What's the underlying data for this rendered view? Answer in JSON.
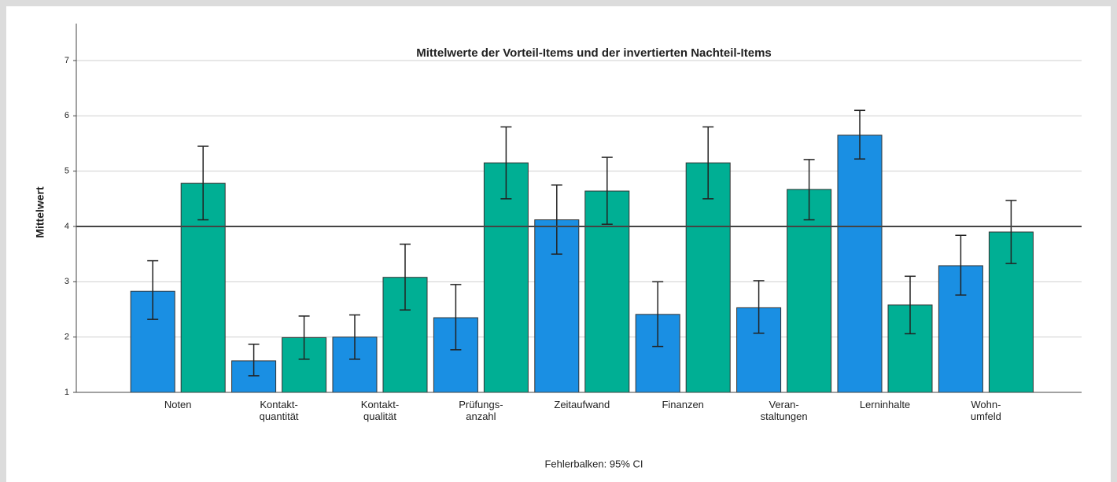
{
  "chart_data": {
    "type": "bar",
    "title": "Mittelwerte der Vorteil-Items und der invertierten Nachteil-Items",
    "y_label": "Mittelwert",
    "annotation": "Fehlerbalken: 95% CI",
    "categories": [
      "Noten",
      "Kontakt-\nquantität",
      "Kontakt-\nqualität",
      "Prüfungs-\nanzahl",
      "Zeitaufwand",
      "Finanzen",
      "Veran-\nstaltungen",
      "Lerninhalte",
      "Wohn-\numfeld"
    ],
    "series": [
      {
        "color": "#1a8fe3",
        "values": [
          2.83,
          1.57,
          2.0,
          2.35,
          4.12,
          2.41,
          2.53,
          5.65,
          3.29
        ],
        "ci_low": [
          2.32,
          1.3,
          1.6,
          1.77,
          3.5,
          1.83,
          2.07,
          5.22,
          2.76
        ],
        "ci_high": [
          3.38,
          1.87,
          2.4,
          2.95,
          4.75,
          3.0,
          3.02,
          6.1,
          3.84
        ]
      },
      {
        "color": "#00af94",
        "values": [
          4.78,
          1.99,
          3.08,
          5.15,
          4.64,
          5.15,
          4.67,
          2.58,
          3.9
        ],
        "ci_low": [
          4.12,
          1.6,
          2.49,
          4.5,
          4.04,
          4.5,
          4.12,
          2.06,
          3.33
        ],
        "ci_high": [
          5.45,
          2.38,
          3.68,
          5.8,
          5.25,
          5.8,
          5.21,
          3.1,
          4.47
        ]
      }
    ],
    "reference_line": 4,
    "ylim": [
      1,
      7
    ],
    "yticks": [
      1,
      2,
      3,
      4,
      5,
      6,
      7
    ],
    "grid": true
  }
}
